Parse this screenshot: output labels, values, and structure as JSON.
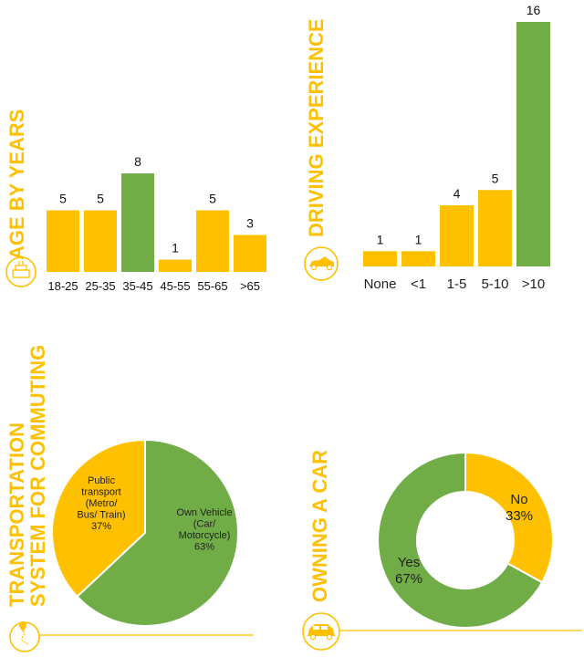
{
  "colors": {
    "accent": "#FFC000",
    "highlight": "#70AD47",
    "icon_stroke": "#FFC000"
  },
  "chart_data": [
    {
      "type": "bar",
      "title": "AGE BY YEARS",
      "categories": [
        "18-25",
        "25-35",
        "35-45",
        "45-55",
        "55-65",
        ">65"
      ],
      "values": [
        5,
        5,
        8,
        1,
        5,
        3
      ],
      "highlight_index": 2,
      "ylim": [
        0,
        8
      ],
      "icon": "birthday-cake-icon"
    },
    {
      "type": "bar",
      "title": "DRIVING EXPERIENCE",
      "categories": [
        "None",
        "<1",
        "1-5",
        "5-10",
        ">10"
      ],
      "values": [
        1,
        1,
        4,
        5,
        16
      ],
      "highlight_index": 4,
      "ylim": [
        0,
        16
      ],
      "icon": "convertible-car-icon"
    },
    {
      "type": "pie",
      "title": "TRANSPORTATION SYSTEM FOR COMMUTING",
      "title_lines": [
        "TRANSPORTATION",
        "SYSTEM FOR COMMUTING"
      ],
      "slices": [
        {
          "label_lines": [
            "Public",
            "transport",
            "(Metro/",
            "Bus/ Train)",
            "37%"
          ],
          "value": 37
        },
        {
          "label_lines": [
            "Own Vehicle",
            "(Car/",
            "Motorcycle)",
            "63%"
          ],
          "value": 63
        }
      ],
      "icon": "route-pin-icon"
    },
    {
      "type": "pie",
      "donut": true,
      "title": "OWNING A CAR",
      "slices": [
        {
          "label_lines": [
            "No",
            "33%"
          ],
          "value": 33
        },
        {
          "label_lines": [
            "Yes",
            "67%"
          ],
          "value": 67
        }
      ],
      "icon": "car-icon"
    }
  ]
}
